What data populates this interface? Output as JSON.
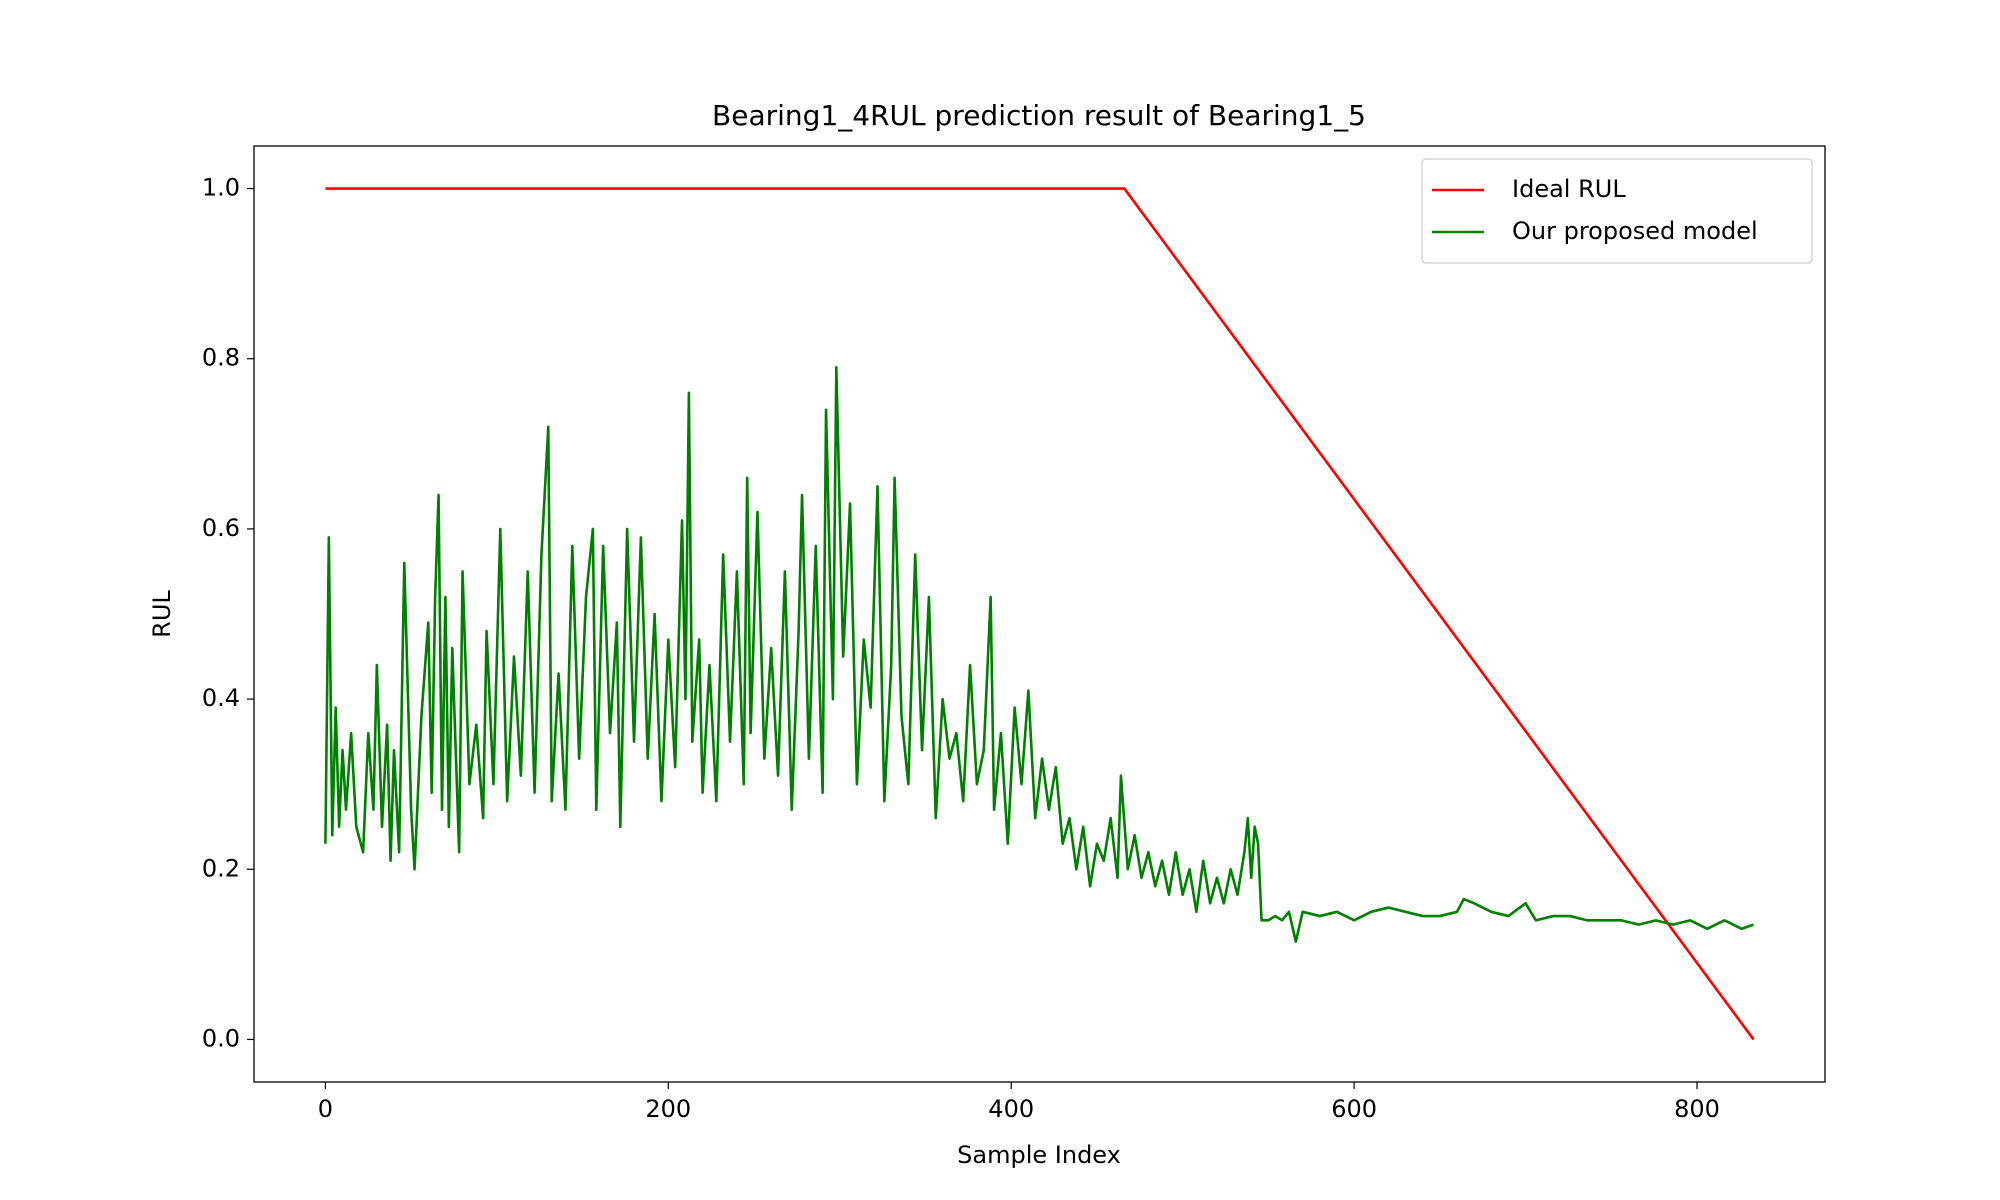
{
  "chart_data": {
    "type": "line",
    "title": "Bearing1_4RUL prediction result of Bearing1_5",
    "x_label": "Sample Index",
    "y_label": "RUL",
    "xlim": [
      -41.65,
      874.65
    ],
    "xticks": [
      0,
      200,
      400,
      600,
      800
    ],
    "ylim": [
      -0.05,
      1.05
    ],
    "yticks": [
      {
        "value": 0,
        "label": "0.0"
      },
      0.2,
      0.4,
      0.6,
      0.8,
      {
        "value": 1,
        "label": "1.0"
      }
    ],
    "legend": "upper right",
    "series": [
      {
        "name": "Ideal RUL",
        "color": "#ff0000",
        "x": [
          0,
          466,
          833
        ],
        "values": [
          1,
          1,
          0
        ]
      },
      {
        "name": "Our proposed model",
        "color": "#008000",
        "x": [
          0,
          2,
          4,
          6,
          8,
          10,
          12,
          15,
          18,
          22,
          25,
          28,
          30,
          33,
          36,
          38,
          40,
          43,
          46,
          50,
          52,
          56,
          60,
          62,
          64,
          66,
          68,
          70,
          72,
          74,
          78,
          80,
          84,
          88,
          92,
          94,
          98,
          102,
          106,
          110,
          114,
          118,
          122,
          126,
          130,
          132,
          136,
          140,
          144,
          148,
          152,
          156,
          158,
          162,
          166,
          170,
          172,
          176,
          180,
          184,
          188,
          192,
          196,
          200,
          204,
          208,
          210,
          212,
          214,
          218,
          220,
          224,
          228,
          232,
          236,
          240,
          244,
          246,
          248,
          252,
          256,
          260,
          264,
          268,
          272,
          276,
          278,
          282,
          286,
          290,
          292,
          296,
          298,
          302,
          306,
          310,
          314,
          318,
          322,
          326,
          330,
          332,
          336,
          340,
          344,
          348,
          352,
          356,
          360,
          364,
          368,
          372,
          376,
          380,
          384,
          388,
          390,
          394,
          398,
          402,
          406,
          410,
          414,
          418,
          422,
          426,
          430,
          434,
          438,
          442,
          446,
          450,
          454,
          458,
          462,
          464,
          468,
          472,
          476,
          480,
          484,
          488,
          492,
          496,
          500,
          504,
          508,
          512,
          516,
          520,
          524,
          528,
          532,
          536,
          538,
          540,
          542,
          544,
          546,
          550,
          554,
          558,
          562,
          566,
          570,
          580,
          590,
          600,
          610,
          620,
          630,
          640,
          650,
          660,
          664,
          670,
          680,
          690,
          700,
          706,
          716,
          726,
          736,
          746,
          756,
          766,
          776,
          786,
          796,
          806,
          816,
          826,
          833
        ],
        "values": [
          0.23,
          0.59,
          0.24,
          0.39,
          0.25,
          0.34,
          0.27,
          0.36,
          0.25,
          0.22,
          0.36,
          0.27,
          0.44,
          0.25,
          0.37,
          0.21,
          0.34,
          0.22,
          0.56,
          0.27,
          0.2,
          0.38,
          0.49,
          0.29,
          0.52,
          0.64,
          0.27,
          0.52,
          0.25,
          0.46,
          0.22,
          0.55,
          0.3,
          0.37,
          0.26,
          0.48,
          0.3,
          0.6,
          0.28,
          0.45,
          0.31,
          0.55,
          0.29,
          0.57,
          0.72,
          0.28,
          0.43,
          0.27,
          0.58,
          0.33,
          0.52,
          0.6,
          0.27,
          0.58,
          0.36,
          0.49,
          0.25,
          0.6,
          0.35,
          0.59,
          0.33,
          0.5,
          0.28,
          0.47,
          0.32,
          0.61,
          0.4,
          0.76,
          0.35,
          0.47,
          0.29,
          0.44,
          0.28,
          0.57,
          0.35,
          0.55,
          0.3,
          0.66,
          0.36,
          0.62,
          0.33,
          0.46,
          0.31,
          0.55,
          0.27,
          0.48,
          0.64,
          0.33,
          0.58,
          0.29,
          0.74,
          0.4,
          0.79,
          0.45,
          0.63,
          0.3,
          0.47,
          0.39,
          0.65,
          0.28,
          0.44,
          0.66,
          0.38,
          0.3,
          0.57,
          0.34,
          0.52,
          0.26,
          0.4,
          0.33,
          0.36,
          0.28,
          0.44,
          0.3,
          0.34,
          0.52,
          0.27,
          0.36,
          0.23,
          0.39,
          0.3,
          0.41,
          0.26,
          0.33,
          0.27,
          0.32,
          0.23,
          0.26,
          0.2,
          0.25,
          0.18,
          0.23,
          0.21,
          0.26,
          0.19,
          0.31,
          0.2,
          0.24,
          0.19,
          0.22,
          0.18,
          0.21,
          0.17,
          0.22,
          0.17,
          0.2,
          0.15,
          0.21,
          0.16,
          0.19,
          0.16,
          0.2,
          0.17,
          0.22,
          0.26,
          0.19,
          0.25,
          0.23,
          0.14,
          0.14,
          0.145,
          0.14,
          0.15,
          0.115,
          0.15,
          0.145,
          0.15,
          0.14,
          0.15,
          0.155,
          0.15,
          0.145,
          0.145,
          0.15,
          0.165,
          0.16,
          0.15,
          0.145,
          0.16,
          0.14,
          0.145,
          0.145,
          0.14,
          0.14,
          0.14,
          0.135,
          0.14,
          0.135,
          0.14,
          0.13,
          0.14,
          0.13,
          0.135
        ]
      }
    ]
  }
}
